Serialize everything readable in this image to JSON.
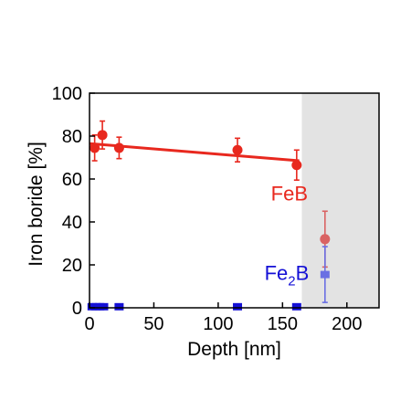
{
  "chart_data": {
    "type": "scatter",
    "xlabel": "Depth [nm]",
    "ylabel": "Iron boride [%]",
    "xlim": [
      0,
      225
    ],
    "ylim": [
      0,
      100
    ],
    "x_ticks": [
      0,
      50,
      100,
      150,
      200
    ],
    "y_ticks": [
      0,
      20,
      40,
      60,
      80,
      100
    ],
    "grid": false,
    "shaded_region": {
      "x_from": 165,
      "x_to": 225,
      "color": "#e3e3e3"
    },
    "series": [
      {
        "name": "FeB",
        "label_text": "FeB",
        "color": "#e8281e",
        "marker": "circle",
        "points": [
          {
            "x": 4,
            "y": 74.5,
            "err": 6
          },
          {
            "x": 10,
            "y": 80.5,
            "err": 6.5
          },
          {
            "x": 23,
            "y": 74.5,
            "err": 5
          },
          {
            "x": 115,
            "y": 73.5,
            "err": 5.5
          },
          {
            "x": 161,
            "y": 66.5,
            "err": 7
          }
        ],
        "trendline": {
          "x": [
            0,
            163
          ],
          "y": [
            76.5,
            68.5
          ]
        }
      },
      {
        "name": "FeB",
        "color": "#d96363",
        "marker": "circle",
        "points": [
          {
            "x": 183,
            "y": 32,
            "err": 13
          }
        ]
      },
      {
        "name": "Fe2B",
        "label_text": "Fe",
        "label_sub": "2",
        "label_tail": "B",
        "color": "#1410d6",
        "marker": "square",
        "points": [
          {
            "x": 2,
            "y": 0.5
          },
          {
            "x": 5,
            "y": 0.5
          },
          {
            "x": 8,
            "y": 0.5
          },
          {
            "x": 11,
            "y": 0.5
          },
          {
            "x": 23,
            "y": 0.5
          },
          {
            "x": 115,
            "y": 0.5
          },
          {
            "x": 161,
            "y": 0.5
          }
        ]
      },
      {
        "name": "Fe2B",
        "color": "#6a6fe3",
        "marker": "square",
        "points": [
          {
            "x": 183,
            "y": 15.5,
            "err": 13
          }
        ]
      }
    ]
  }
}
